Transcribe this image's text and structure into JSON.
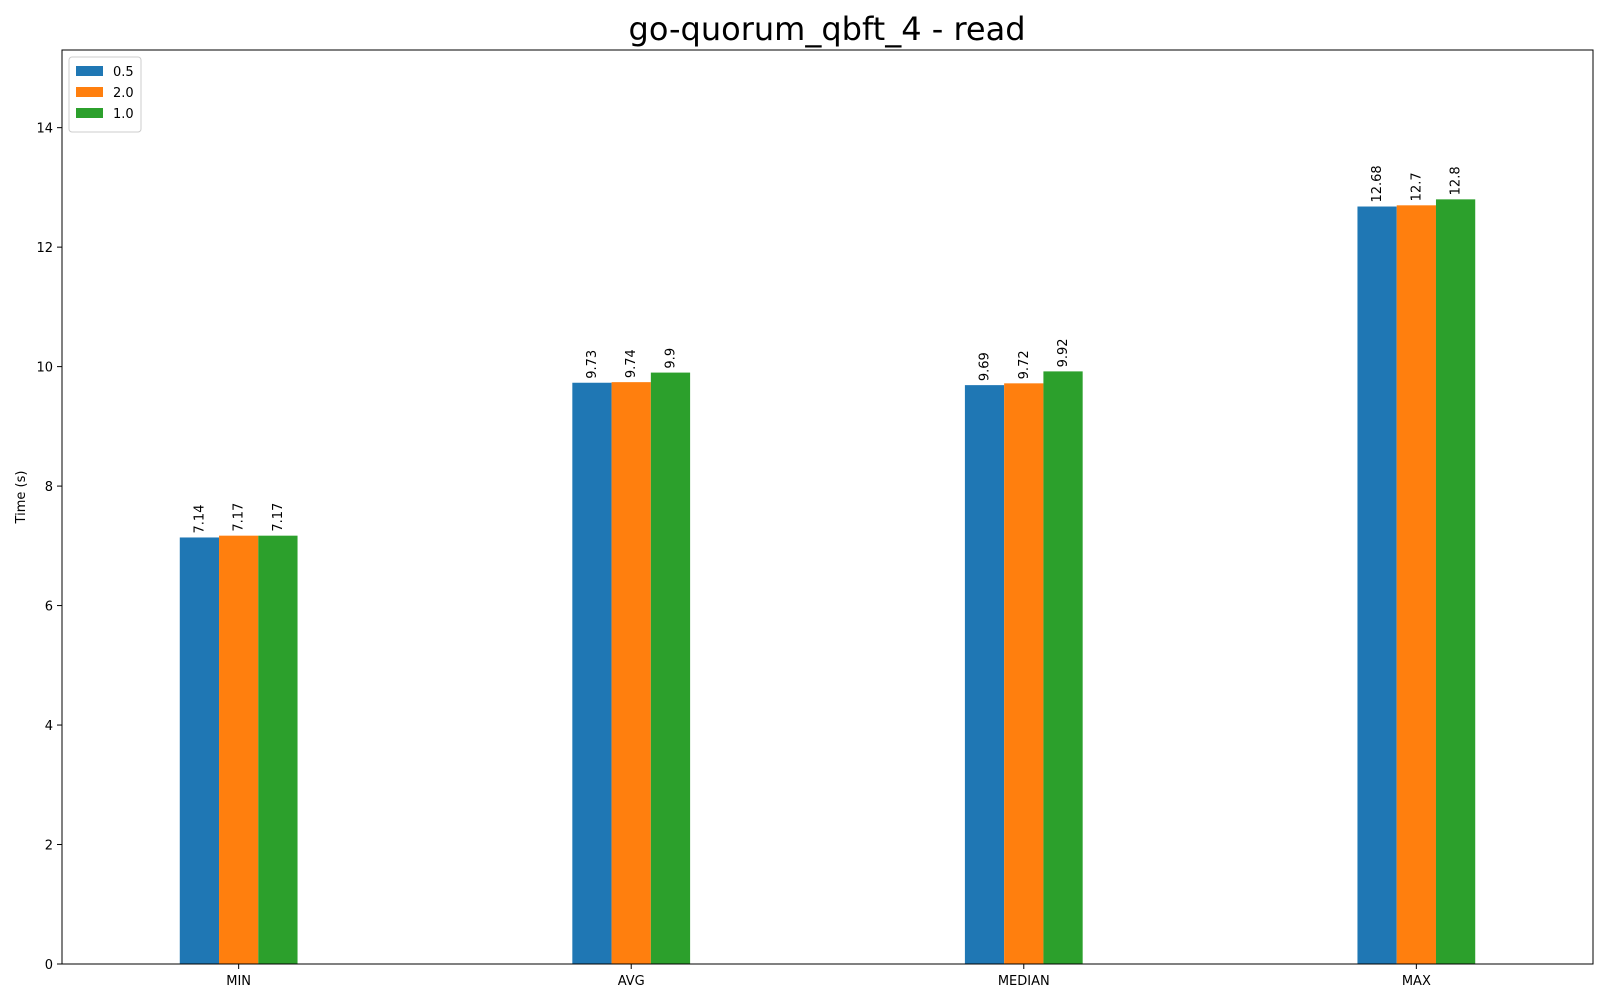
{
  "chart_data": {
    "type": "bar",
    "title": "go-quorum_qbft_4 - read",
    "xlabel": "",
    "ylabel": "Time (s)",
    "categories": [
      "MIN",
      "AVG",
      "MEDIAN",
      "MAX"
    ],
    "series": [
      {
        "name": "0.5",
        "color": "#1f77b4",
        "values": [
          7.14,
          9.73,
          9.69,
          12.68
        ]
      },
      {
        "name": "2.0",
        "color": "#ff7f0e",
        "values": [
          7.17,
          9.74,
          9.72,
          12.7
        ]
      },
      {
        "name": "1.0",
        "color": "#2ca02c",
        "values": [
          7.17,
          9.9,
          9.92,
          12.8
        ]
      }
    ],
    "ylim": [
      0,
      15.3
    ],
    "yticks": [
      0,
      2,
      4,
      6,
      8,
      10,
      12,
      14
    ],
    "grid": false,
    "legend_position": "top-left"
  }
}
